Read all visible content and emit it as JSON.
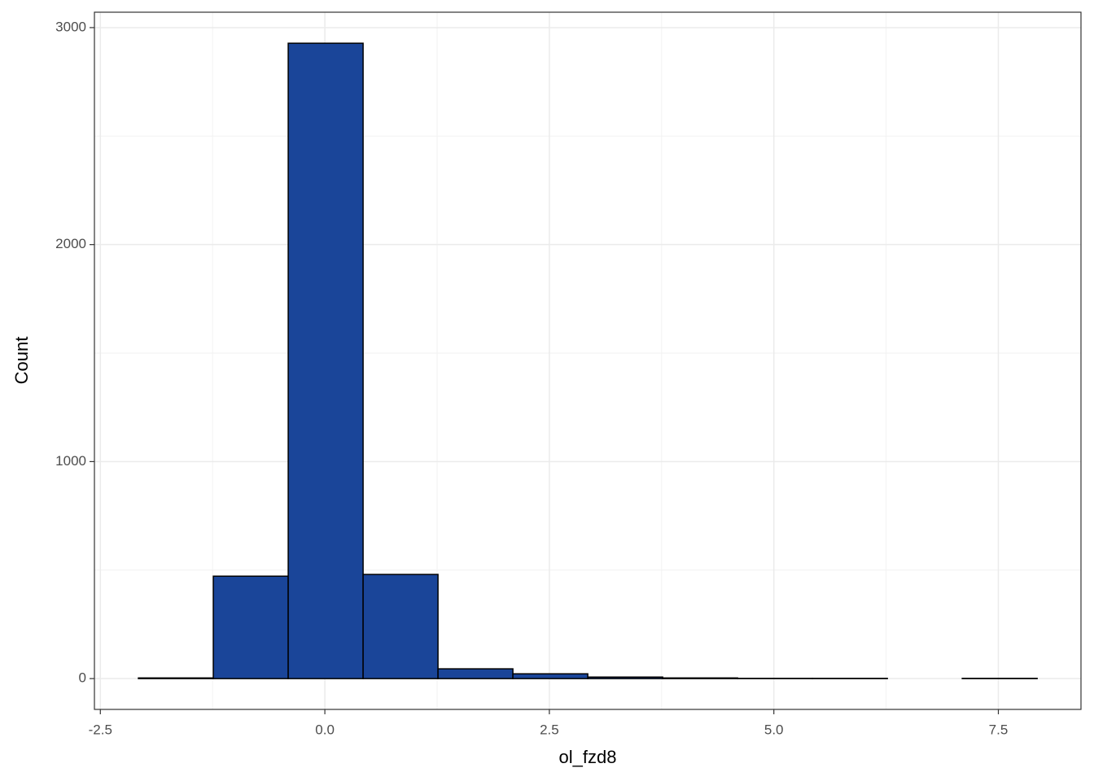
{
  "chart_data": {
    "type": "histogram",
    "xlabel": "ol_fzd8",
    "ylabel": "Count",
    "bins": [
      -2.076,
      -1.242,
      -0.408,
      0.426,
      1.26,
      2.094,
      2.928,
      3.762,
      4.596,
      5.43,
      6.264,
      7.098,
      7.932
    ],
    "counts": [
      3,
      472,
      2928,
      480,
      45,
      22,
      7,
      3,
      1,
      1,
      0,
      1
    ],
    "color": "#1a4599",
    "edgecolor": "#000000",
    "xlim": [
      -2.566,
      8.42
    ],
    "ylim": [
      -142,
      3071
    ],
    "xticks": [
      -2.5,
      {
        "value": 0,
        "label": "0.0"
      },
      2.5,
      {
        "value": 5,
        "label": "5.0"
      },
      7.5
    ],
    "yticks": [
      0,
      1000,
      2000,
      3000
    ],
    "minor_xticks": [
      -1.25,
      1.25,
      3.75,
      6.25
    ],
    "minor_yticks": [
      500,
      1500,
      2500
    ],
    "grid": true
  }
}
